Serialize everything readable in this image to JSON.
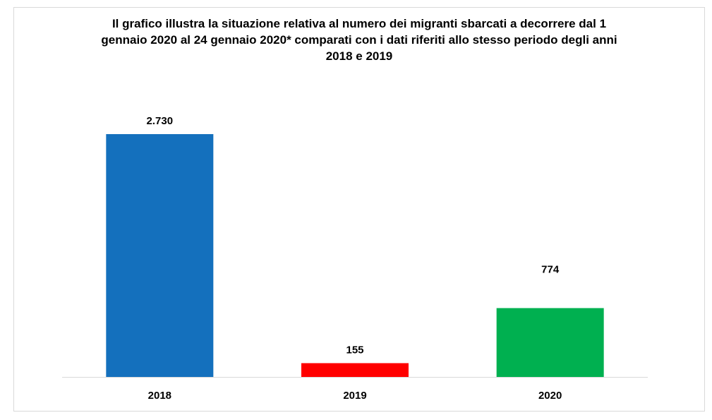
{
  "chart_data": {
    "type": "bar",
    "title_lines": [
      "Il grafico illustra la situazione relativa al numero dei migranti sbarcati a decorrere dal 1",
      "gennaio 2020 al 24 gennaio 2020* comparati con i dati riferiti allo stesso periodo degli anni",
      "2018 e 2019"
    ],
    "categories": [
      "2018",
      "2019",
      "2020"
    ],
    "values": [
      2730,
      155,
      774
    ],
    "value_labels": [
      "2.730",
      "155",
      "774"
    ],
    "colors": [
      "#1470BD",
      "#FF0000",
      "#00B050"
    ],
    "xlabel": "",
    "ylabel": "",
    "ylim": [
      0,
      3000
    ],
    "grid": false,
    "legend": "none",
    "axis_line_color": "#d9d9d9"
  }
}
